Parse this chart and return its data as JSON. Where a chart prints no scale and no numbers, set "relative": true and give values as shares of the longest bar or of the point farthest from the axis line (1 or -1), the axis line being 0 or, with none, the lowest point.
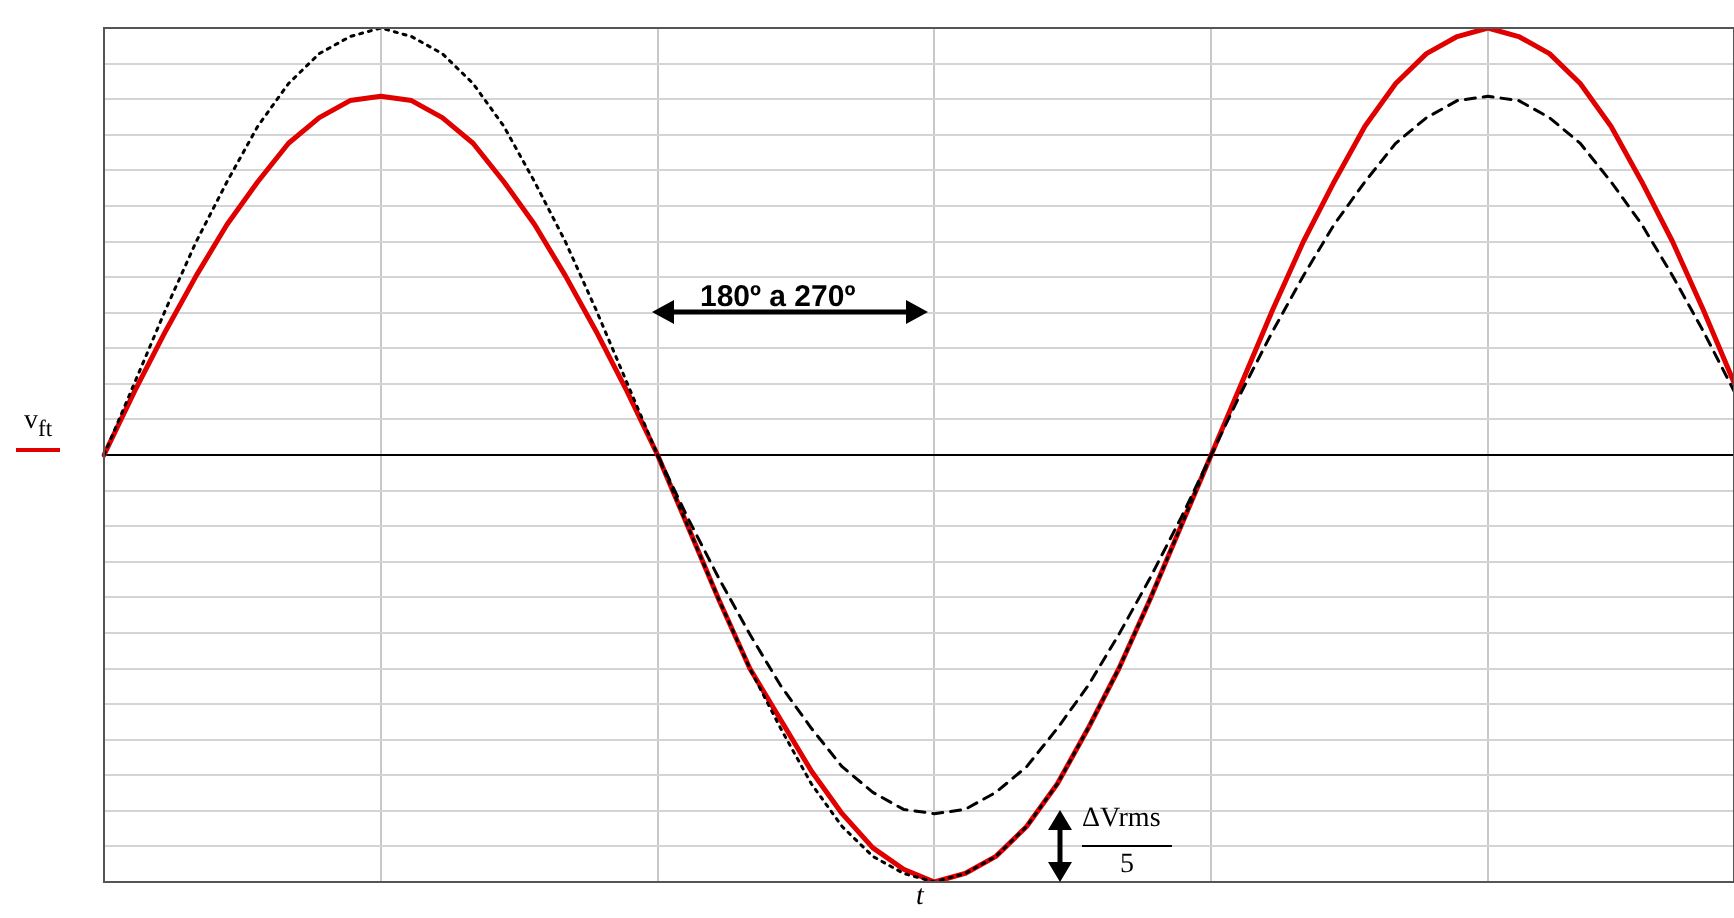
{
  "chart_data": {
    "type": "line",
    "relative": true,
    "ylabel": "v$_{ft}$",
    "xlabel": "t",
    "grid": true,
    "legend": false,
    "marker": "none",
    "tick_labels": false,
    "categories": [
      null,
      null,
      null,
      null,
      null,
      null,
      null,
      null,
      null,
      null,
      null,
      null,
      null,
      null,
      null,
      null,
      null,
      null,
      null,
      null,
      null,
      null,
      null,
      null,
      null,
      null,
      null,
      null,
      null,
      null,
      null,
      null,
      null,
      null,
      null,
      null,
      null,
      null,
      null,
      null,
      null,
      null,
      null,
      null,
      null,
      null,
      null,
      null,
      null,
      null,
      null,
      null,
      null,
      null
    ],
    "annotations": [
      "180º a 270º",
      "ΔVrms",
      "5"
    ],
    "series": [
      {
        "color": "#000000",
        "line_style": "dotted",
        "values": [
          0,
          0.17,
          0.34,
          0.5,
          0.64,
          0.77,
          0.87,
          0.94,
          0.98,
          1,
          0.98,
          0.94,
          0.87,
          0.77,
          0.64,
          0.5,
          0.34,
          0.17,
          0,
          -0.17,
          -0.34,
          -0.5,
          -0.64,
          -0.77,
          -0.87,
          -0.94,
          -0.98,
          -1,
          -0.98,
          -0.94,
          -0.87,
          -0.77,
          -0.64,
          -0.5,
          -0.34,
          -0.17,
          0,
          null,
          null,
          null,
          null,
          null,
          null,
          null,
          null,
          null,
          null,
          null,
          null,
          null,
          null,
          null,
          null,
          null
        ]
      },
      {
        "color": "#000000",
        "line_style": "dashed",
        "values": [
          null,
          null,
          null,
          null,
          null,
          null,
          null,
          null,
          null,
          null,
          null,
          null,
          null,
          null,
          null,
          null,
          null,
          null,
          0,
          -0.15,
          -0.29,
          -0.42,
          -0.54,
          -0.64,
          -0.73,
          -0.79,
          -0.83,
          -0.84,
          -0.83,
          -0.79,
          -0.73,
          -0.64,
          -0.54,
          -0.42,
          -0.29,
          -0.15,
          0,
          0.15,
          0.29,
          0.42,
          0.54,
          0.64,
          0.73,
          0.79,
          0.83,
          0.84,
          0.83,
          0.79,
          0.73,
          0.64,
          0.54,
          0.42,
          0.29,
          0.15
        ]
      },
      {
        "color": "#e00000",
        "line_style": "solid",
        "values": [
          0,
          0.15,
          0.29,
          0.42,
          0.54,
          0.64,
          0.73,
          0.79,
          0.83,
          0.84,
          0.83,
          0.79,
          0.73,
          0.64,
          0.54,
          0.42,
          0.29,
          0.15,
          0,
          -0.17,
          -0.34,
          -0.5,
          -0.62,
          -0.74,
          -0.84,
          -0.92,
          -0.97,
          -1,
          -0.98,
          -0.94,
          -0.87,
          -0.77,
          -0.64,
          -0.5,
          -0.34,
          -0.17,
          0,
          0.17,
          0.34,
          0.5,
          0.64,
          0.77,
          0.87,
          0.94,
          0.98,
          1,
          0.98,
          0.94,
          0.87,
          0.77,
          0.64,
          0.5,
          0.34,
          0.17
        ]
      }
    ]
  }
}
